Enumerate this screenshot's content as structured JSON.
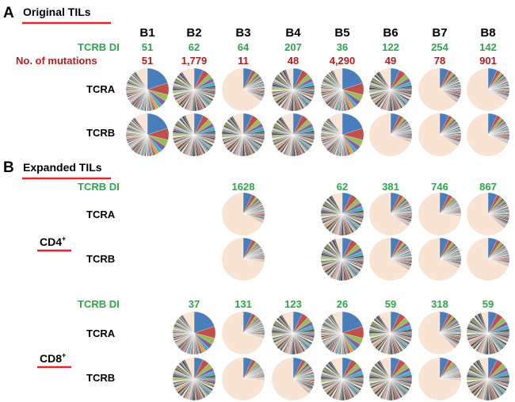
{
  "colors": {
    "green": "#2aa84a",
    "red": "#b11e1e",
    "underline": "#e0262a",
    "pie_background": "#f9e3d2"
  },
  "panel_a": {
    "letter": "A",
    "title": "Original TILs",
    "columns": [
      "B1",
      "B2",
      "B3",
      "B4",
      "B5",
      "B6",
      "B7",
      "B8"
    ],
    "tcrb_di_label": "TCRB DI",
    "tcrb_di": [
      "51",
      "62",
      "64",
      "207",
      "36",
      "122",
      "254",
      "142"
    ],
    "mutations_label": "No. of mutations",
    "mutations": [
      "51",
      "1,779",
      "11",
      "48",
      "4,290",
      "49",
      "78",
      "901"
    ],
    "rows": [
      "TCRA",
      "TCRB"
    ]
  },
  "panel_b": {
    "letter": "B",
    "title": "Expanded TILs",
    "cd4": {
      "label": "CD4",
      "superscript": "+",
      "tcrb_di_label": "TCRB DI",
      "tcrb_di": [
        "",
        "",
        "1628",
        "",
        "62",
        "381",
        "746",
        "867"
      ],
      "rows": [
        "TCRA",
        "TCRB"
      ]
    },
    "cd8": {
      "label": "CD8",
      "superscript": "+",
      "tcrb_di_label": "TCRB DI",
      "tcrb_di": [
        "",
        "37",
        "131",
        "123",
        "26",
        "59",
        "318",
        "59"
      ],
      "rows": [
        "TCRA",
        "TCRB"
      ]
    }
  },
  "pie_sets": {
    "a_tcra": [
      "diverse_major",
      "diverse",
      "dominant",
      "diverse",
      "diverse_major",
      "diverse",
      "dominant",
      "dominant"
    ],
    "a_tcrb": [
      "diverse_major",
      "diverse",
      "diverse",
      "diverse",
      "diverse_major",
      "dominant",
      "dominant",
      "dominant"
    ],
    "cd4_tcra": [
      "",
      "",
      "dominant",
      "",
      "diverse",
      "dominant",
      "dominant",
      "dominant"
    ],
    "cd4_tcrb": [
      "",
      "",
      "dominant",
      "",
      "diverse",
      "dominant",
      "dominant",
      "dominant"
    ],
    "cd8_tcra": [
      "",
      "diverse_major",
      "dominant",
      "diverse",
      "diverse_major",
      "diverse",
      "dominant",
      "diverse"
    ],
    "cd8_tcrb": [
      "",
      "diverse",
      "dominant",
      "dominant",
      "diverse",
      "diverse",
      "dominant",
      "diverse"
    ]
  }
}
